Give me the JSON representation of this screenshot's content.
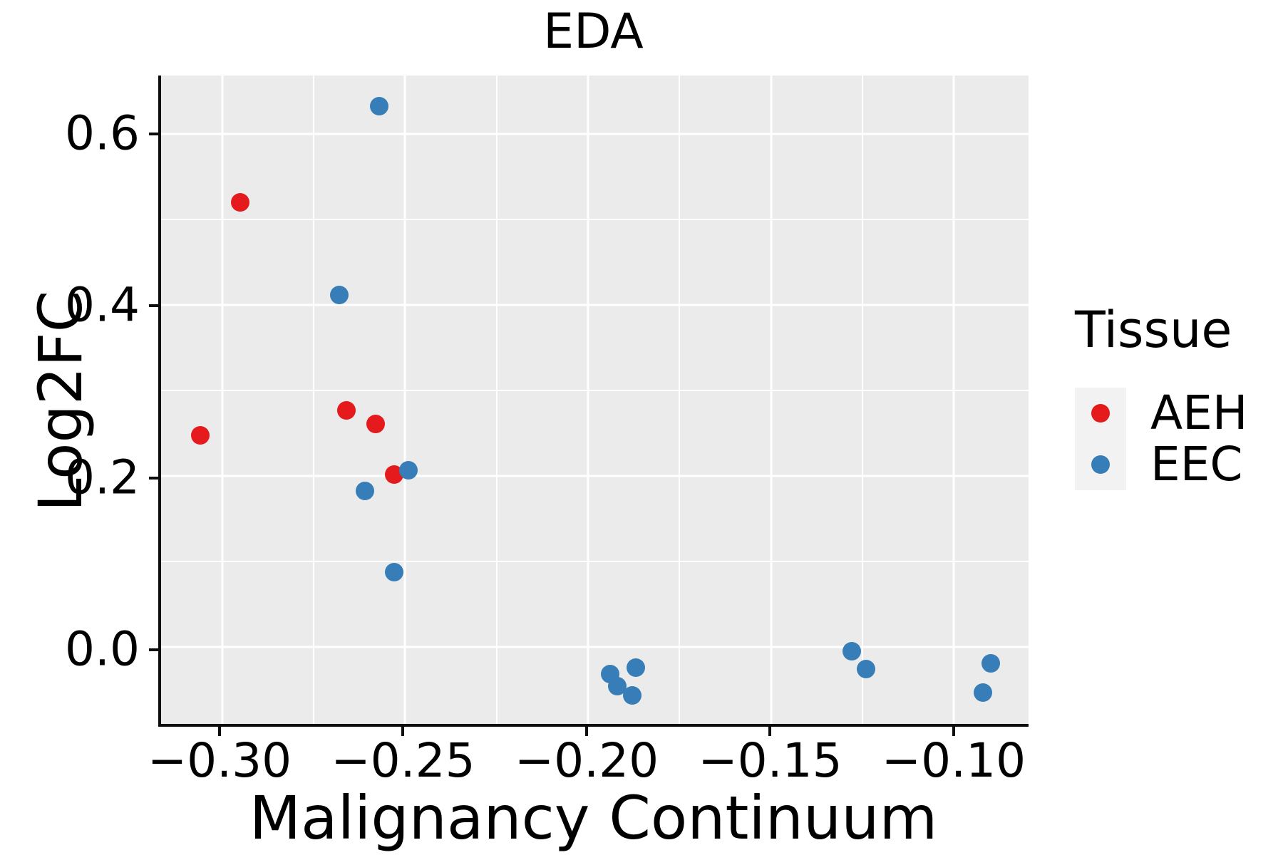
{
  "title": "EDA",
  "axes": {
    "x": {
      "label": "Malignancy Continuum",
      "tick_labels": [
        "−0.30",
        "−0.25",
        "−0.20",
        "−0.15",
        "−0.10"
      ],
      "tick_values": [
        -0.3,
        -0.25,
        -0.2,
        -0.15,
        -0.1
      ],
      "minor_values": [
        -0.275,
        -0.225,
        -0.175,
        -0.125
      ]
    },
    "y": {
      "label": "Log2FC",
      "tick_labels": [
        "0.0",
        "0.2",
        "0.4",
        "0.6"
      ],
      "tick_values": [
        0.0,
        0.2,
        0.4,
        0.6
      ],
      "minor_values": [
        0.1,
        0.3,
        0.5
      ]
    }
  },
  "legend": {
    "title": "Tissue",
    "entries": [
      {
        "label": "AEH",
        "color": "#e41a1c"
      },
      {
        "label": "EEC",
        "color": "#377eb8"
      }
    ]
  },
  "colors": {
    "panel_background": "#ebebeb",
    "gridline": "#ffffff",
    "axis_spine": "#0d0d0d",
    "aeh": "#e41a1c",
    "eec": "#377eb8",
    "legend_key_background": "#f2f2f2"
  },
  "chart_data": {
    "type": "scatter",
    "title": "EDA",
    "xlabel": "Malignancy Continuum",
    "ylabel": "Log2FC",
    "xlim": [
      -0.3167,
      -0.0796
    ],
    "ylim": [
      -0.0895,
      0.668
    ],
    "grid": true,
    "legend_position": "right",
    "legend_title": "Tissue",
    "series": [
      {
        "name": "AEH",
        "color": "#e41a1c",
        "points": [
          [
            -0.306,
            0.248
          ],
          [
            -0.295,
            0.52
          ],
          [
            -0.266,
            0.277
          ],
          [
            -0.258,
            0.261
          ],
          [
            -0.253,
            0.202
          ]
        ]
      },
      {
        "name": "EEC",
        "color": "#377eb8",
        "points": [
          [
            -0.268,
            0.412
          ],
          [
            -0.261,
            0.183
          ],
          [
            -0.257,
            0.632
          ],
          [
            -0.253,
            0.088
          ],
          [
            -0.249,
            0.207
          ],
          [
            -0.194,
            -0.031
          ],
          [
            -0.192,
            -0.045
          ],
          [
            -0.188,
            -0.056
          ],
          [
            -0.187,
            -0.024
          ],
          [
            -0.128,
            -0.005
          ],
          [
            -0.124,
            -0.025
          ],
          [
            -0.092,
            -0.053
          ],
          [
            -0.09,
            -0.019
          ]
        ]
      }
    ]
  }
}
